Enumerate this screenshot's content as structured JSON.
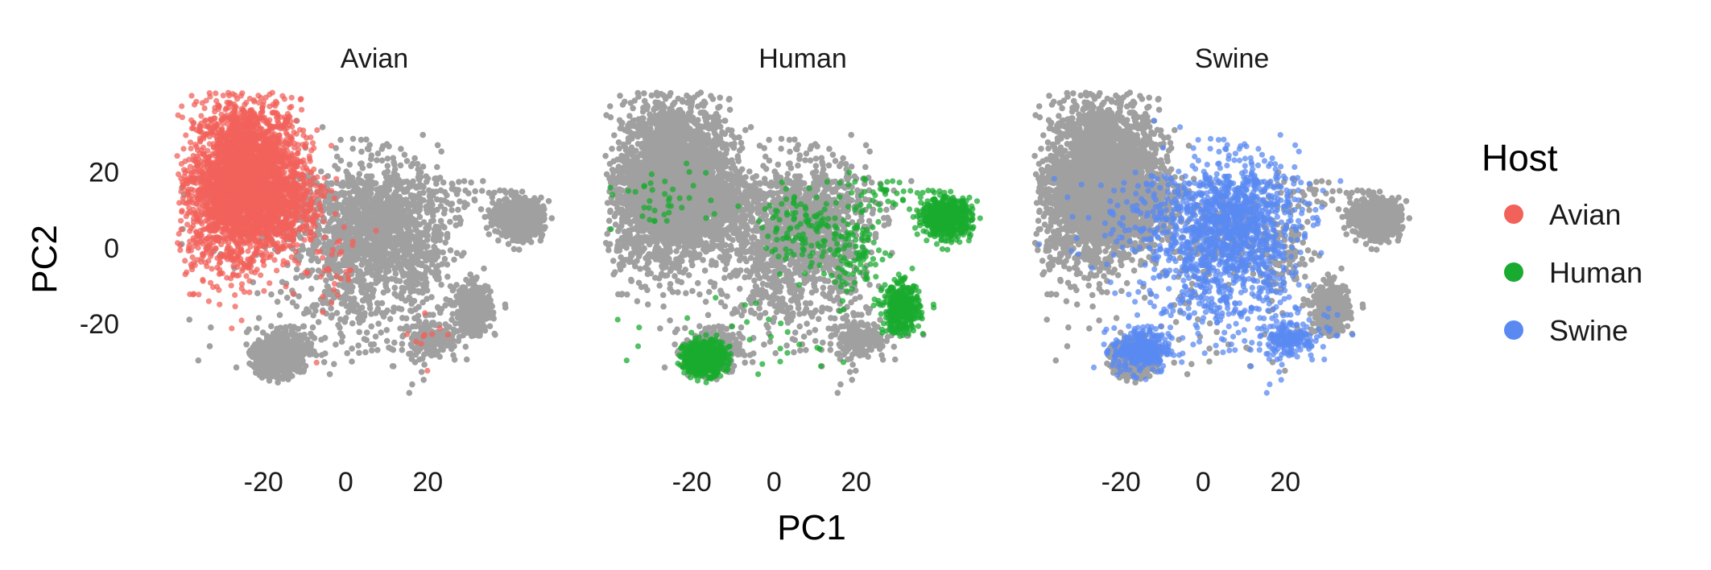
{
  "chart_data": {
    "type": "scatter",
    "title": "",
    "xlabel": "PC1",
    "ylabel": "PC2",
    "xlim": [
      -42,
      56
    ],
    "ylim": [
      -45,
      42
    ],
    "x_ticks": [
      -20,
      0,
      20
    ],
    "y_ticks": [
      20,
      0,
      -20
    ],
    "x_tick_labels": [
      "-20",
      "0",
      "20"
    ],
    "y_tick_labels": [
      "20",
      "0",
      "-20"
    ],
    "grid": false,
    "background_color": "#a0a0a0",
    "legend": {
      "title": "Host",
      "position": "right",
      "entries": [
        {
          "label": "Avian",
          "color": "#f2625b"
        },
        {
          "label": "Human",
          "color": "#19ab2f"
        },
        {
          "label": "Swine",
          "color": "#5a89f2"
        }
      ]
    },
    "panels": [
      {
        "title": "Avian",
        "highlight": "Avian"
      },
      {
        "title": "Human",
        "highlight": "Human"
      },
      {
        "title": "Swine",
        "highlight": "Swine"
      }
    ],
    "series": [
      {
        "name": "Avian",
        "color": "#f2625b",
        "clusters": [
          {
            "cx": -24,
            "cy": 19,
            "sx": 6.5,
            "sy": 10,
            "n": 2600
          },
          {
            "cx": -29,
            "cy": 9,
            "sx": 6,
            "sy": 9,
            "n": 500
          },
          {
            "cx": -14,
            "cy": 10,
            "sx": 5,
            "sy": 6,
            "n": 250
          },
          {
            "cx": -5,
            "cy": -5,
            "sx": 5,
            "sy": 9,
            "n": 30
          },
          {
            "cx": 19,
            "cy": -25,
            "sx": 3,
            "sy": 3,
            "n": 10
          }
        ]
      },
      {
        "name": "Human",
        "color": "#19ab2f",
        "clusters": [
          {
            "cx": -17,
            "cy": -29,
            "sx": 2.5,
            "sy": 2.2,
            "n": 700
          },
          {
            "cx": 42,
            "cy": 8,
            "sx": 3,
            "sy": 2.5,
            "n": 600
          },
          {
            "cx": 31,
            "cy": -16,
            "sx": 2.2,
            "sy": 3.2,
            "n": 400
          },
          {
            "cx": 8,
            "cy": 5,
            "sx": 5.5,
            "sy": 5,
            "n": 120
          },
          {
            "cx": 20,
            "cy": -2,
            "sx": 4,
            "sy": 5,
            "n": 90
          },
          {
            "cx": -30,
            "cy": 13,
            "sx": 7,
            "sy": 4,
            "n": 40
          },
          {
            "cx": 25,
            "cy": 14,
            "sx": 6,
            "sy": 2.5,
            "n": 40
          },
          {
            "cx": 0,
            "cy": -22,
            "sx": 14,
            "sy": 6,
            "n": 30
          }
        ]
      },
      {
        "name": "Swine",
        "color": "#5a89f2",
        "clusters": [
          {
            "cx": 7,
            "cy": 8,
            "sx": 8,
            "sy": 8,
            "n": 900
          },
          {
            "cx": 3,
            "cy": -6,
            "sx": 9,
            "sy": 9,
            "n": 400
          },
          {
            "cx": -15,
            "cy": -27,
            "sx": 3.5,
            "sy": 3,
            "n": 300
          },
          {
            "cx": 21,
            "cy": -24,
            "sx": 3,
            "sy": 2.5,
            "n": 150
          },
          {
            "cx": -12,
            "cy": 9,
            "sx": 10,
            "sy": 6,
            "n": 120
          },
          {
            "cx": 14,
            "cy": -18,
            "sx": 9,
            "sy": 8,
            "n": 90
          }
        ]
      }
    ]
  }
}
